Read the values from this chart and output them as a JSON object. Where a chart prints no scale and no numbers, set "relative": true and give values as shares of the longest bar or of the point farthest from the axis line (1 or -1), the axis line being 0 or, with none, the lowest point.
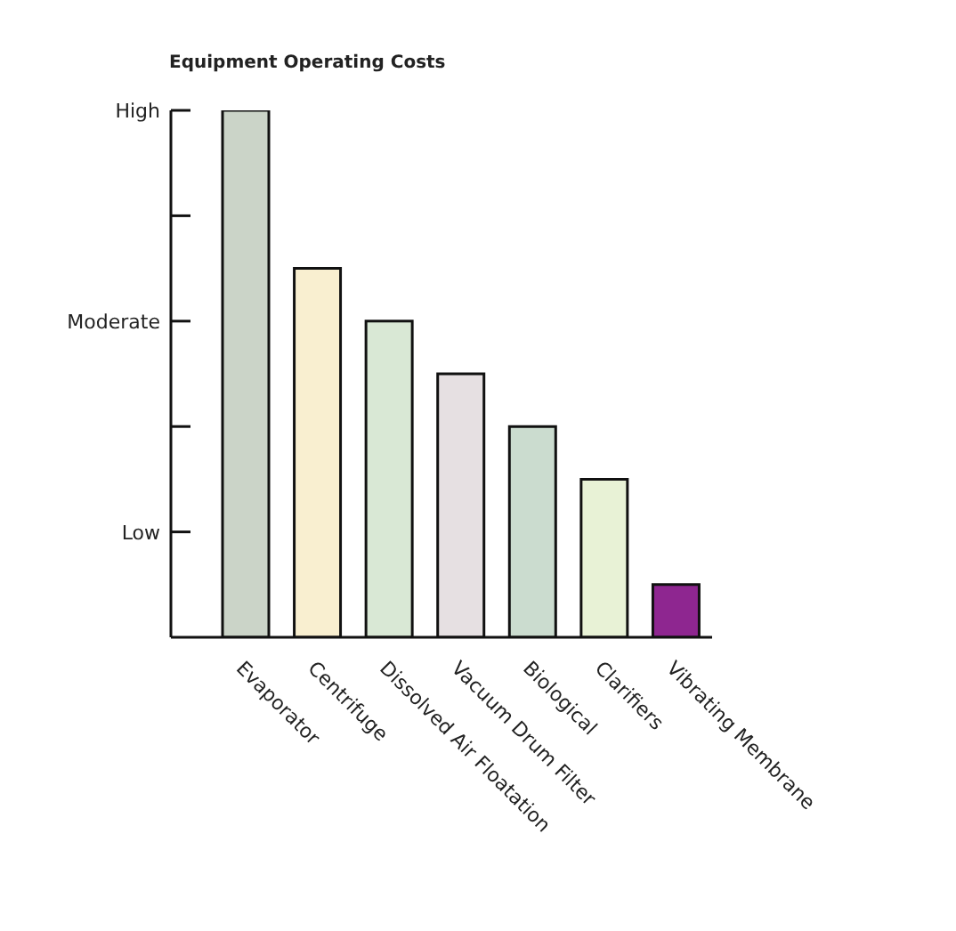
{
  "chart_data": {
    "type": "bar",
    "title": "Equipment Operating Costs",
    "categories": [
      "Evaporator",
      "Centrifuge",
      "Dissolved Air Floatation",
      "Vacuum Drum Filter",
      "Biological",
      "Clarifiers",
      "Vibrating Membrane"
    ],
    "values": [
      1,
      0.7,
      0.6,
      0.5,
      0.4,
      0.3,
      0.1
    ],
    "colors": [
      "#cbd4c8",
      "#f9efd0",
      "#d9e8d5",
      "#e6e0e2",
      "#cbdccf",
      "#e8f2d6",
      "#8e2690"
    ],
    "relative": true,
    "annotations": [
      "Low",
      "Moderate",
      "High"
    ]
  }
}
